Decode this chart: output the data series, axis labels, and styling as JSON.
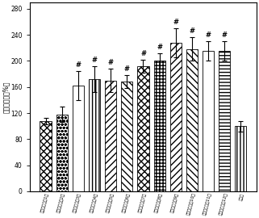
{
  "categories": [
    "糖类组合物第1号",
    "糖类组合物第2号",
    "糖类组合物第3号",
    "糖类组合物第4号",
    "糖类组合物第5号",
    "糖类组合物第6号",
    "糖类组合物第7号",
    "糖类组合物第8号",
    "糖类组合物第9号",
    "糖类组合物第10号",
    "糖类组合物第11号",
    "糖类组合物第12号",
    "对照组"
  ],
  "values": [
    108,
    118,
    162,
    172,
    170,
    168,
    192,
    200,
    228,
    218,
    215,
    215,
    100
  ],
  "errors": [
    5,
    12,
    22,
    20,
    18,
    10,
    10,
    12,
    22,
    18,
    15,
    15,
    8
  ],
  "has_hash": [
    false,
    false,
    true,
    true,
    true,
    true,
    true,
    true,
    true,
    true,
    true,
    true,
    false
  ],
  "hatch_list": [
    "xxxx",
    "....",
    "====",
    "||||",
    "////",
    "\\\\\\\\\\\\\\\\",
    "XXXX",
    "xxxx",
    "////",
    "\\\\\\\\",
    "",
    "----",
    "||||"
  ],
  "bar_facecolor": "white",
  "edge_color": "black",
  "ylabel": "细胞存活率（%）",
  "yticks": [
    0,
    40,
    80,
    120,
    160,
    200,
    240,
    280
  ],
  "ylim": [
    0,
    290
  ],
  "figsize": [
    3.21,
    2.7
  ],
  "dpi": 100,
  "bar_width": 0.7
}
